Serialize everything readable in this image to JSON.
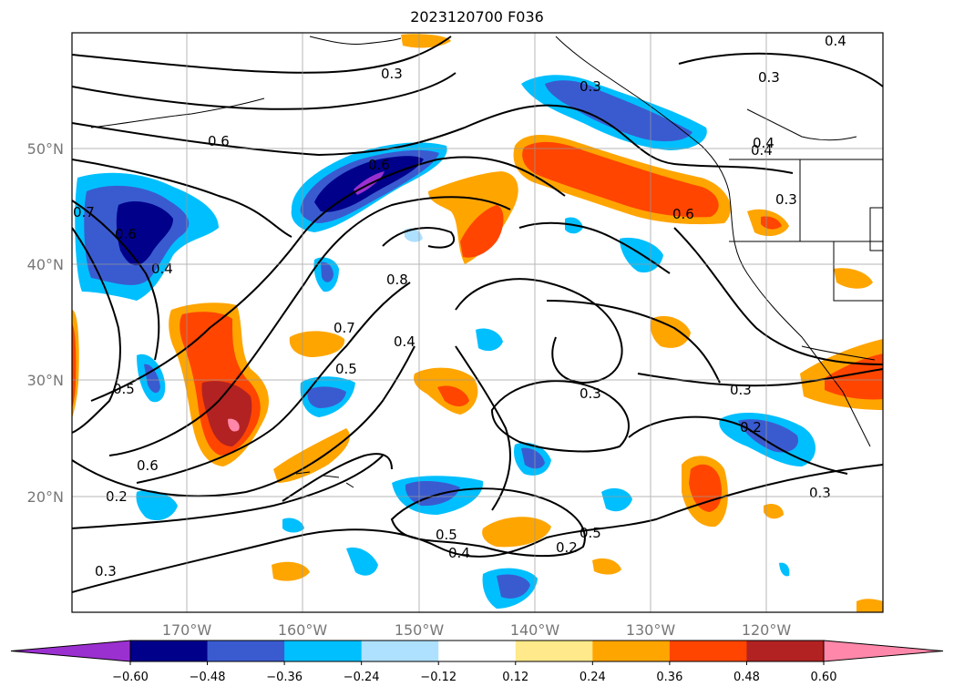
{
  "title": "2023120700 F036",
  "map": {
    "lat_labels": [
      "50°N",
      "40°N",
      "30°N",
      "20°N"
    ],
    "lon_labels": [
      "170°W",
      "160°W",
      "150°W",
      "140°W",
      "130°W",
      "120°W"
    ],
    "gridlines": true
  },
  "contour_labels": [
    "0.3",
    "0.6",
    "0.6",
    "0.3",
    "0.4",
    "0.7",
    "0.6",
    "0.4",
    "0.8",
    "0.4",
    "0.7",
    "0.5",
    "0.6",
    "0.4",
    "0.3",
    "0.3",
    "0.5",
    "0.6",
    "0.2",
    "0.3",
    "0.5",
    "0.4",
    "0.2",
    "0.5",
    "0.3",
    "0.2",
    "0.3",
    "0.4",
    "0.3"
  ],
  "colorbar": {
    "ticks": [
      "−0.60",
      "−0.48",
      "−0.36",
      "−0.24",
      "−0.12",
      "0.12",
      "0.24",
      "0.36",
      "0.48",
      "0.60"
    ],
    "colors": [
      "#9b30d0",
      "#00008b",
      "#3a5bd0",
      "#00bfff",
      "#aee0ff",
      "#ffffff",
      "#ffe98a",
      "#ffa500",
      "#ff4500",
      "#b22222",
      "#ff88aa"
    ],
    "extend": "both"
  }
}
